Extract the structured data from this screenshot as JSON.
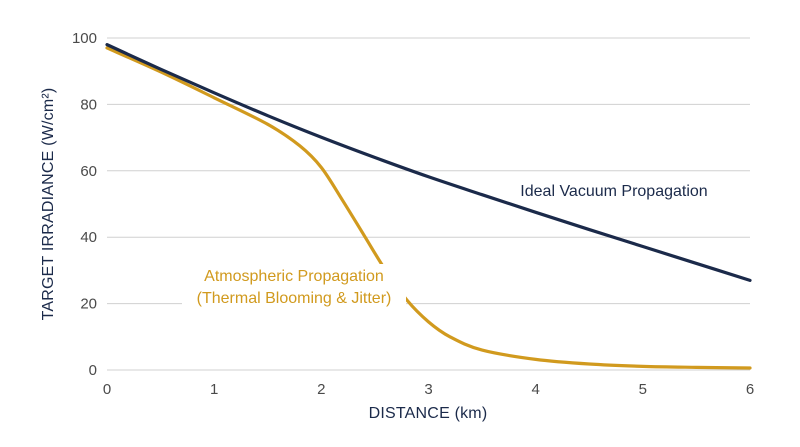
{
  "chart_data": {
    "type": "line",
    "xlabel": "DISTANCE (km)",
    "ylabel": "TARGET IRRADIANCE (W/cm²)",
    "xlim": [
      0,
      6
    ],
    "ylim": [
      0,
      100
    ],
    "x_ticks": [
      0,
      1,
      2,
      3,
      4,
      5,
      6
    ],
    "y_ticks": [
      0,
      20,
      40,
      60,
      80,
      100
    ],
    "grid": "horizontal",
    "legend": "inline labels",
    "series": [
      {
        "name": "Ideal Vacuum Propagation",
        "label_lines": [
          "Ideal Vacuum Propagation"
        ],
        "color": "#1b2a4a",
        "x": [
          0,
          0.5,
          1,
          1.5,
          2,
          2.5,
          3,
          3.5,
          4,
          4.5,
          5,
          5.5,
          6
        ],
        "y": [
          98,
          90.6,
          83.5,
          76.6,
          70.1,
          64,
          58.2,
          52.8,
          47.5,
          42.3,
          37.2,
          32.1,
          27
        ]
      },
      {
        "name": "Atmospheric Propagation (Thermal Blooming & Jitter)",
        "label_lines": [
          "Atmospheric Propagation",
          "(Thermal Blooming & Jitter)"
        ],
        "color": "#d19a1e",
        "x": [
          0,
          0.5,
          1,
          1.5,
          1.8,
          2,
          2.2,
          2.4,
          2.6,
          2.8,
          3,
          3.2,
          3.5,
          4,
          4.5,
          5,
          5.5,
          6
        ],
        "y": [
          97,
          89.8,
          82,
          74,
          67.5,
          61,
          51,
          40.5,
          30,
          21,
          14.5,
          10,
          6,
          3.2,
          1.8,
          1.1,
          0.8,
          0.6
        ]
      }
    ]
  }
}
